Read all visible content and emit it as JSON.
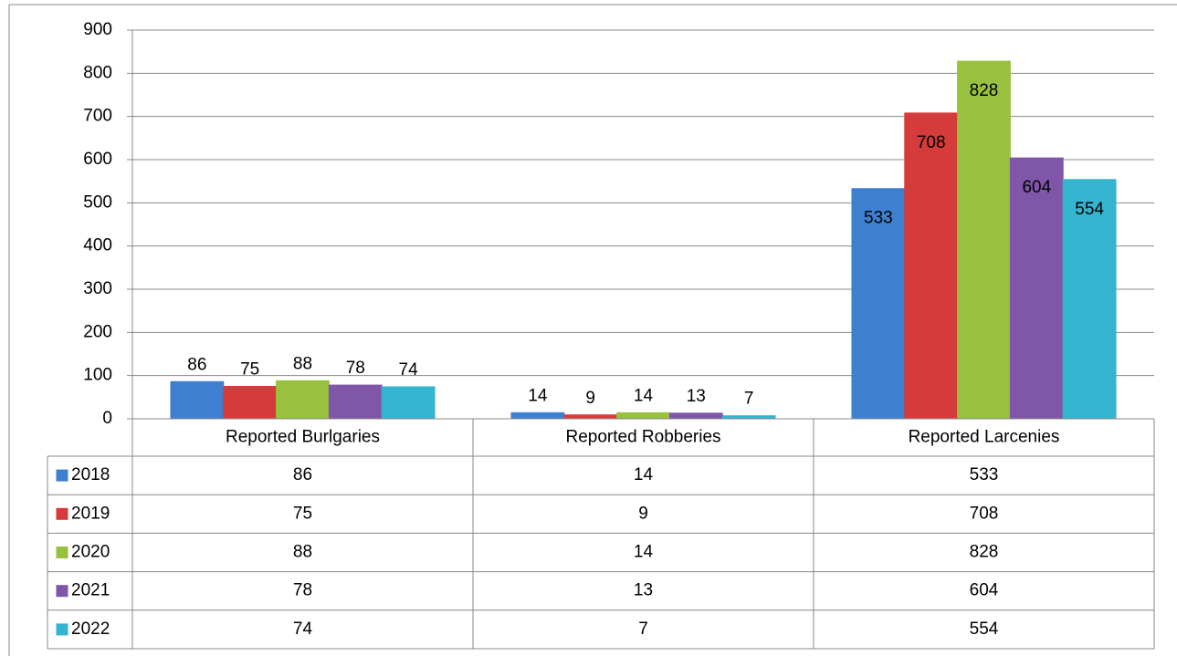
{
  "chart_data": {
    "type": "bar",
    "categories": [
      "Reported Burlgaries",
      "Reported Robberies",
      "Reported Larcenies"
    ],
    "series": [
      {
        "name": "2018",
        "color": "#3f7fcf",
        "values": [
          86,
          14,
          533
        ]
      },
      {
        "name": "2019",
        "color": "#d63b3b",
        "values": [
          75,
          9,
          708
        ]
      },
      {
        "name": "2020",
        "color": "#98c13f",
        "values": [
          88,
          14,
          828
        ]
      },
      {
        "name": "2021",
        "color": "#7f56a8",
        "values": [
          78,
          13,
          604
        ]
      },
      {
        "name": "2022",
        "color": "#34b4cf",
        "values": [
          74,
          7,
          554
        ]
      }
    ],
    "ylim": [
      0,
      900
    ],
    "yticks": [
      0,
      100,
      200,
      300,
      400,
      500,
      600,
      700,
      800,
      900
    ],
    "grid": true,
    "legend": "table"
  }
}
